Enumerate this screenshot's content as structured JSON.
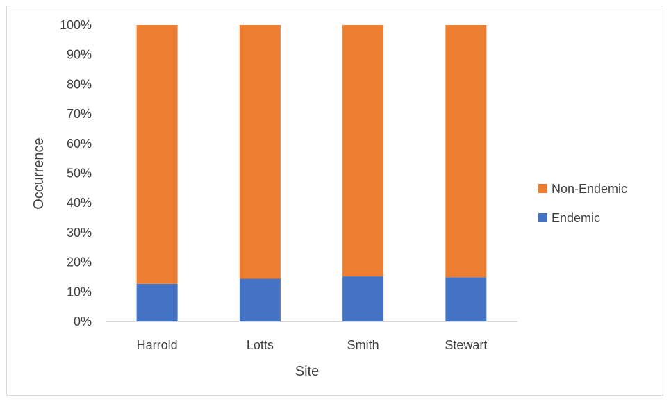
{
  "chart_data": {
    "type": "bar",
    "stacked": true,
    "percent_stacked": true,
    "categories": [
      "Harrold",
      "Lotts",
      "Smith",
      "Stewart"
    ],
    "series": [
      {
        "name": "Endemic",
        "color": "#4472C4",
        "values": [
          12.7,
          14.4,
          15.2,
          14.9
        ]
      },
      {
        "name": "Non-Endemic",
        "color": "#ED7D31",
        "values": [
          87.3,
          85.6,
          84.8,
          85.1
        ]
      }
    ],
    "xlabel": "Site",
    "ylabel": "Occurrence",
    "ylim": [
      0,
      100
    ],
    "yticks": [
      "0%",
      "10%",
      "20%",
      "30%",
      "40%",
      "50%",
      "60%",
      "70%",
      "80%",
      "90%",
      "100%"
    ],
    "grid": false,
    "legend_position": "right",
    "legend_order": [
      "Non-Endemic",
      "Endemic"
    ]
  }
}
